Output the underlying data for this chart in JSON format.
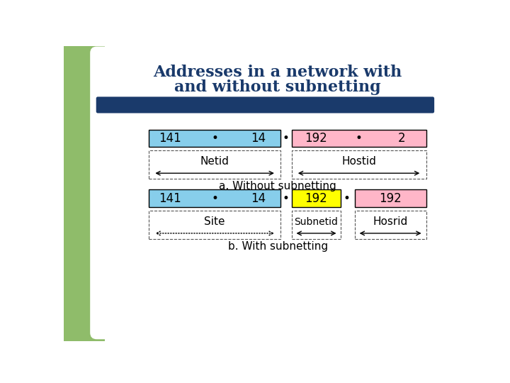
{
  "title_line1": "Addresses in a network with",
  "title_line2": "and without subnetting",
  "title_color": "#1a3a6b",
  "title_fontsize": 16,
  "bg_color": "#ffffff",
  "cyan_box_color": "#87ceeb",
  "pink_box_a_color": "#ffb6c8",
  "yellow_box_color": "#ffff00",
  "pink_box_b_color": "#ffb6c8",
  "blue_bar_color": "#1a3a6b",
  "green_sidebar_color": "#8fbc6a",
  "subtitle_a": "a. Without subnetting",
  "subtitle_b": "b. With subnetting",
  "label_netid": "Netid",
  "label_hostid": "Hostid",
  "label_site": "Site",
  "label_subnetid": "Subnetid",
  "label_hostrid": "Hosrid",
  "dot": "•",
  "box_a_left_vals": [
    "141",
    "14"
  ],
  "box_a_right_vals": [
    "192",
    "2"
  ],
  "box_b_left_vals": [
    "141",
    "14"
  ],
  "box_b_mid_val": "192",
  "box_b_right_val": "192"
}
